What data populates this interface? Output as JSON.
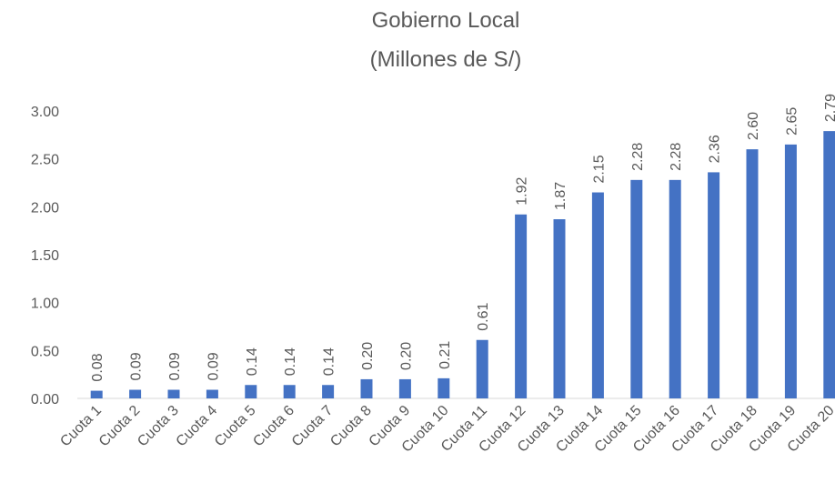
{
  "chart_data": {
    "type": "bar",
    "title": "Gobierno Local",
    "subtitle": "(Millones de S/)",
    "categories": [
      "Cuota 1",
      "Cuota 2",
      "Cuota 3",
      "Cuota 4",
      "Cuota 5",
      "Cuota 6",
      "Cuota 7",
      "Cuota 8",
      "Cuota 9",
      "Cuota 10",
      "Cuota 11",
      "Cuota 12",
      "Cuota 13",
      "Cuota 14",
      "Cuota 15",
      "Cuota 16",
      "Cuota 17",
      "Cuota 18",
      "Cuota 19",
      "Cuota 20"
    ],
    "values": [
      0.08,
      0.09,
      0.09,
      0.09,
      0.14,
      0.14,
      0.14,
      0.2,
      0.2,
      0.21,
      0.61,
      1.92,
      1.87,
      2.15,
      2.28,
      2.28,
      2.36,
      2.6,
      2.65,
      2.79
    ],
    "value_labels": [
      "0.08",
      "0.09",
      "0.09",
      "0.09",
      "0.14",
      "0.14",
      "0.14",
      "0.20",
      "0.20",
      "0.21",
      "0.61",
      "1.92",
      "1.87",
      "2.15",
      "2.28",
      "2.28",
      "2.36",
      "2.60",
      "2.65",
      "2.79"
    ],
    "color": "#4472c4",
    "ylim": [
      0,
      3
    ],
    "yticks": [
      {
        "value": 0,
        "label": "0.00"
      },
      {
        "value": 0.5,
        "label": "0.50"
      },
      {
        "value": 1,
        "label": "1.00"
      },
      {
        "value": 1.5,
        "label": "1.50"
      },
      {
        "value": 2,
        "label": "2.00"
      },
      {
        "value": 2.5,
        "label": "2.50"
      },
      {
        "value": 3,
        "label": "3.00"
      }
    ],
    "grid": false
  }
}
